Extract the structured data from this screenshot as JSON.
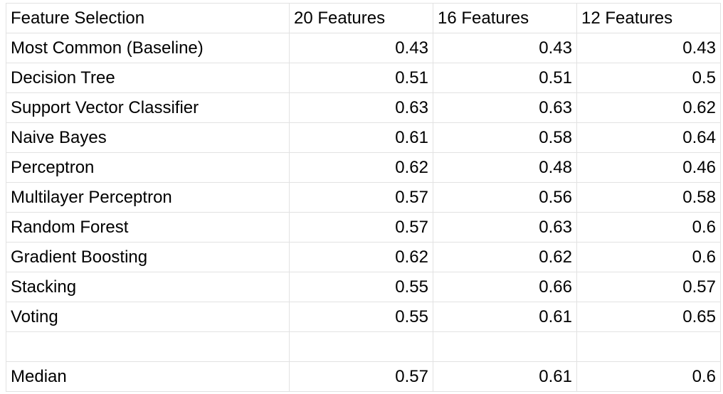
{
  "header": [
    "Feature Selection",
    "20 Features",
    "16 Features",
    "12 Features"
  ],
  "rows": [
    [
      "Most Common (Baseline)",
      "0.43",
      "0.43",
      "0.43"
    ],
    [
      "Decision Tree",
      "0.51",
      "0.51",
      "0.5"
    ],
    [
      "Support Vector Classifier",
      "0.63",
      "0.63",
      "0.62"
    ],
    [
      "Naive Bayes",
      "0.61",
      "0.58",
      "0.64"
    ],
    [
      "Perceptron",
      "0.62",
      "0.48",
      "0.46"
    ],
    [
      "Multilayer Perceptron",
      "0.57",
      "0.56",
      "0.58"
    ],
    [
      "Random Forest",
      "0.57",
      "0.63",
      "0.6"
    ],
    [
      "Gradient Boosting",
      "0.62",
      "0.62",
      "0.6"
    ],
    [
      "Stacking",
      "0.55",
      "0.66",
      "0.57"
    ],
    [
      "Voting",
      "0.55",
      "0.61",
      "0.65"
    ],
    [
      "",
      "",
      "",
      ""
    ],
    [
      "Median",
      "0.57",
      "0.61",
      "0.6"
    ]
  ]
}
